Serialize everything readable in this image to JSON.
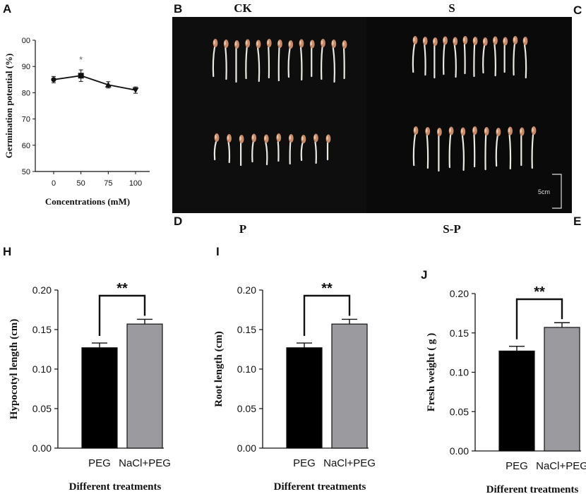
{
  "panels": {
    "A": "A",
    "B": "B",
    "C": "C",
    "D": "D",
    "E": "E",
    "H": "H",
    "I": "I",
    "J": "J"
  },
  "photo": {
    "labels": {
      "ck": "CK",
      "s": "S",
      "p": "P",
      "sp": "S-P"
    },
    "scale_bar": "5cm",
    "groups": [
      {
        "name": "CK",
        "count": 13,
        "root": "long"
      },
      {
        "name": "S",
        "count": 12,
        "root": "long"
      },
      {
        "name": "P",
        "count": 10,
        "root": "short"
      },
      {
        "name": "S-P",
        "count": 11,
        "root": "medium"
      }
    ]
  },
  "chart_data": [
    {
      "id": "A",
      "type": "line",
      "title": "",
      "xlabel": "Concentrations (mM)",
      "ylabel": "Germination potential (%)",
      "x": [
        "0",
        "50",
        "75",
        "100"
      ],
      "values": [
        85,
        86.5,
        83,
        81
      ],
      "errors": [
        1.2,
        2.2,
        1.2,
        1.2
      ],
      "markers": [
        "circle",
        "square",
        "triangle",
        "triangle-down"
      ],
      "annotations": [
        {
          "x": "50",
          "text": "*"
        }
      ],
      "ylim": [
        50,
        100
      ],
      "yticks": [
        "50",
        "60",
        "70",
        "80",
        "90",
        "00"
      ]
    },
    {
      "id": "H",
      "type": "bar",
      "categories": [
        "PEG",
        "NaCl+PEG"
      ],
      "values": [
        0.127,
        0.157
      ],
      "errors": [
        0.006,
        0.006
      ],
      "colors": [
        "#000000",
        "#9a9a9f"
      ],
      "significance": "**",
      "xlabel": "Different treatments",
      "ylabel": "Hypocotyl length (cm)",
      "ylim": [
        0,
        0.2
      ],
      "yticks": [
        "0.00",
        "0.05",
        "0.10",
        "0.15",
        "0.20"
      ]
    },
    {
      "id": "I",
      "type": "bar",
      "categories": [
        "PEG",
        "NaCl+PEG"
      ],
      "values": [
        0.127,
        0.157
      ],
      "errors": [
        0.006,
        0.006
      ],
      "colors": [
        "#000000",
        "#9a9a9f"
      ],
      "significance": "**",
      "xlabel": "Different treatments",
      "ylabel": "Root length (cm)",
      "ylim": [
        0,
        0.2
      ],
      "yticks": [
        "0.00",
        "0.05",
        "0.10",
        "0.15",
        "0.20"
      ]
    },
    {
      "id": "J",
      "type": "bar",
      "categories": [
        "PEG",
        "NaCl+PEG"
      ],
      "values": [
        0.127,
        0.157
      ],
      "errors": [
        0.006,
        0.006
      ],
      "colors": [
        "#000000",
        "#9a9a9f"
      ],
      "significance": "**",
      "xlabel": "Different treatments",
      "ylabel": "Fresh weight ( g )",
      "ylim": [
        0,
        0.2
      ],
      "yticks": [
        "0.00",
        "0.05",
        "0.10",
        "0.15",
        "0.20"
      ]
    }
  ]
}
